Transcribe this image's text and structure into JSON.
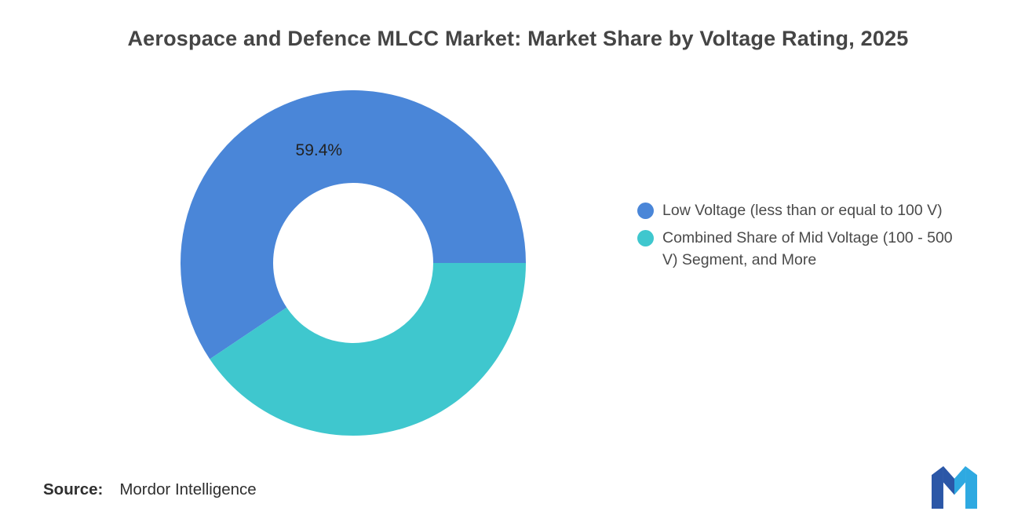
{
  "chart_data": {
    "type": "pie",
    "title": "Aerospace and Defence MLCC Market: Market Share by Voltage Rating, 2025",
    "donut": true,
    "start_angle_deg": 0,
    "direction": "counterclockwise",
    "legend_position": "right",
    "total": 100,
    "slices": [
      {
        "name": "low-voltage",
        "label": "Low Voltage (less than or equal to 100 V)",
        "value": 59.4,
        "data_label": "59.4%",
        "color": "#4A86D8"
      },
      {
        "name": "mid-voltage-and-more",
        "label": "Combined Share of Mid Voltage (100 - 500 V) Segment, and More",
        "value": 40.6,
        "data_label": "",
        "color": "#3FC7CE"
      }
    ]
  },
  "source": {
    "prefix": "Source:",
    "text": "Mordor Intelligence"
  },
  "logo": {
    "alt": "Mordor Intelligence logo",
    "dark_blue": "#2B57A7",
    "light_blue": "#2EA9E1"
  }
}
